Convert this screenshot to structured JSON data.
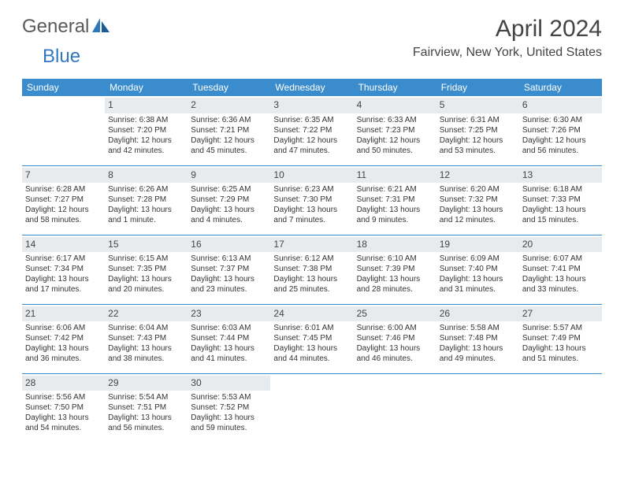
{
  "logo": {
    "text1": "General",
    "text2": "Blue"
  },
  "title": "April 2024",
  "location": "Fairview, New York, United States",
  "colors": {
    "header_bg": "#3b8ccc",
    "header_text": "#ffffff",
    "daynum_bg": "#e8ebed",
    "border": "#3b8ccc",
    "logo_blue": "#2f78c0",
    "logo_gray": "#5a5a5a"
  },
  "weekdays": [
    "Sunday",
    "Monday",
    "Tuesday",
    "Wednesday",
    "Thursday",
    "Friday",
    "Saturday"
  ],
  "weeks": [
    [
      null,
      {
        "n": "1",
        "sr": "Sunrise: 6:38 AM",
        "ss": "Sunset: 7:20 PM",
        "d1": "Daylight: 12 hours",
        "d2": "and 42 minutes."
      },
      {
        "n": "2",
        "sr": "Sunrise: 6:36 AM",
        "ss": "Sunset: 7:21 PM",
        "d1": "Daylight: 12 hours",
        "d2": "and 45 minutes."
      },
      {
        "n": "3",
        "sr": "Sunrise: 6:35 AM",
        "ss": "Sunset: 7:22 PM",
        "d1": "Daylight: 12 hours",
        "d2": "and 47 minutes."
      },
      {
        "n": "4",
        "sr": "Sunrise: 6:33 AM",
        "ss": "Sunset: 7:23 PM",
        "d1": "Daylight: 12 hours",
        "d2": "and 50 minutes."
      },
      {
        "n": "5",
        "sr": "Sunrise: 6:31 AM",
        "ss": "Sunset: 7:25 PM",
        "d1": "Daylight: 12 hours",
        "d2": "and 53 minutes."
      },
      {
        "n": "6",
        "sr": "Sunrise: 6:30 AM",
        "ss": "Sunset: 7:26 PM",
        "d1": "Daylight: 12 hours",
        "d2": "and 56 minutes."
      }
    ],
    [
      {
        "n": "7",
        "sr": "Sunrise: 6:28 AM",
        "ss": "Sunset: 7:27 PM",
        "d1": "Daylight: 12 hours",
        "d2": "and 58 minutes."
      },
      {
        "n": "8",
        "sr": "Sunrise: 6:26 AM",
        "ss": "Sunset: 7:28 PM",
        "d1": "Daylight: 13 hours",
        "d2": "and 1 minute."
      },
      {
        "n": "9",
        "sr": "Sunrise: 6:25 AM",
        "ss": "Sunset: 7:29 PM",
        "d1": "Daylight: 13 hours",
        "d2": "and 4 minutes."
      },
      {
        "n": "10",
        "sr": "Sunrise: 6:23 AM",
        "ss": "Sunset: 7:30 PM",
        "d1": "Daylight: 13 hours",
        "d2": "and 7 minutes."
      },
      {
        "n": "11",
        "sr": "Sunrise: 6:21 AM",
        "ss": "Sunset: 7:31 PM",
        "d1": "Daylight: 13 hours",
        "d2": "and 9 minutes."
      },
      {
        "n": "12",
        "sr": "Sunrise: 6:20 AM",
        "ss": "Sunset: 7:32 PM",
        "d1": "Daylight: 13 hours",
        "d2": "and 12 minutes."
      },
      {
        "n": "13",
        "sr": "Sunrise: 6:18 AM",
        "ss": "Sunset: 7:33 PM",
        "d1": "Daylight: 13 hours",
        "d2": "and 15 minutes."
      }
    ],
    [
      {
        "n": "14",
        "sr": "Sunrise: 6:17 AM",
        "ss": "Sunset: 7:34 PM",
        "d1": "Daylight: 13 hours",
        "d2": "and 17 minutes."
      },
      {
        "n": "15",
        "sr": "Sunrise: 6:15 AM",
        "ss": "Sunset: 7:35 PM",
        "d1": "Daylight: 13 hours",
        "d2": "and 20 minutes."
      },
      {
        "n": "16",
        "sr": "Sunrise: 6:13 AM",
        "ss": "Sunset: 7:37 PM",
        "d1": "Daylight: 13 hours",
        "d2": "and 23 minutes."
      },
      {
        "n": "17",
        "sr": "Sunrise: 6:12 AM",
        "ss": "Sunset: 7:38 PM",
        "d1": "Daylight: 13 hours",
        "d2": "and 25 minutes."
      },
      {
        "n": "18",
        "sr": "Sunrise: 6:10 AM",
        "ss": "Sunset: 7:39 PM",
        "d1": "Daylight: 13 hours",
        "d2": "and 28 minutes."
      },
      {
        "n": "19",
        "sr": "Sunrise: 6:09 AM",
        "ss": "Sunset: 7:40 PM",
        "d1": "Daylight: 13 hours",
        "d2": "and 31 minutes."
      },
      {
        "n": "20",
        "sr": "Sunrise: 6:07 AM",
        "ss": "Sunset: 7:41 PM",
        "d1": "Daylight: 13 hours",
        "d2": "and 33 minutes."
      }
    ],
    [
      {
        "n": "21",
        "sr": "Sunrise: 6:06 AM",
        "ss": "Sunset: 7:42 PM",
        "d1": "Daylight: 13 hours",
        "d2": "and 36 minutes."
      },
      {
        "n": "22",
        "sr": "Sunrise: 6:04 AM",
        "ss": "Sunset: 7:43 PM",
        "d1": "Daylight: 13 hours",
        "d2": "and 38 minutes."
      },
      {
        "n": "23",
        "sr": "Sunrise: 6:03 AM",
        "ss": "Sunset: 7:44 PM",
        "d1": "Daylight: 13 hours",
        "d2": "and 41 minutes."
      },
      {
        "n": "24",
        "sr": "Sunrise: 6:01 AM",
        "ss": "Sunset: 7:45 PM",
        "d1": "Daylight: 13 hours",
        "d2": "and 44 minutes."
      },
      {
        "n": "25",
        "sr": "Sunrise: 6:00 AM",
        "ss": "Sunset: 7:46 PM",
        "d1": "Daylight: 13 hours",
        "d2": "and 46 minutes."
      },
      {
        "n": "26",
        "sr": "Sunrise: 5:58 AM",
        "ss": "Sunset: 7:48 PM",
        "d1": "Daylight: 13 hours",
        "d2": "and 49 minutes."
      },
      {
        "n": "27",
        "sr": "Sunrise: 5:57 AM",
        "ss": "Sunset: 7:49 PM",
        "d1": "Daylight: 13 hours",
        "d2": "and 51 minutes."
      }
    ],
    [
      {
        "n": "28",
        "sr": "Sunrise: 5:56 AM",
        "ss": "Sunset: 7:50 PM",
        "d1": "Daylight: 13 hours",
        "d2": "and 54 minutes."
      },
      {
        "n": "29",
        "sr": "Sunrise: 5:54 AM",
        "ss": "Sunset: 7:51 PM",
        "d1": "Daylight: 13 hours",
        "d2": "and 56 minutes."
      },
      {
        "n": "30",
        "sr": "Sunrise: 5:53 AM",
        "ss": "Sunset: 7:52 PM",
        "d1": "Daylight: 13 hours",
        "d2": "and 59 minutes."
      },
      null,
      null,
      null,
      null
    ]
  ]
}
